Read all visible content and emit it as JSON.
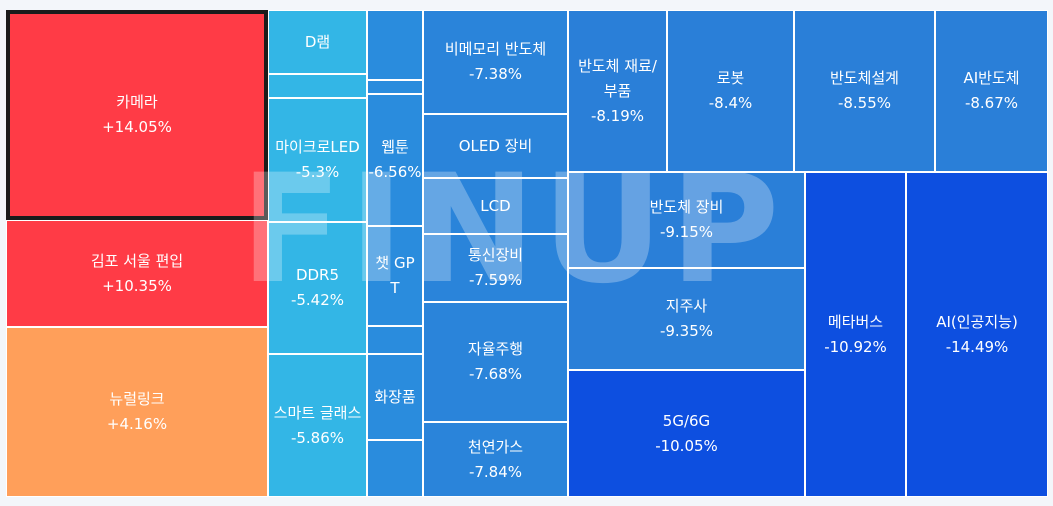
{
  "watermark": "FINUP",
  "tiles": [
    {
      "name": "카메라",
      "change": "+14.05%",
      "color": "#ff3b46"
    },
    {
      "name": "김포 서울 편입",
      "change": "+10.35%",
      "color": "#ff3b46"
    },
    {
      "name": "뉴럴링크",
      "change": "+4.16%",
      "color": "#ff9f5a"
    },
    {
      "name": "D램",
      "change": "",
      "color": "#33b6e6"
    },
    {
      "name": "",
      "change": "",
      "color": "#33b6e6"
    },
    {
      "name": "마이크로LED",
      "change": "-5.3%",
      "color": "#33b6e6"
    },
    {
      "name": "DDR5",
      "change": "-5.42%",
      "color": "#33b6e6"
    },
    {
      "name": "스마트 글래스",
      "change": "-5.86%",
      "color": "#33b6e6"
    },
    {
      "name": "",
      "change": "",
      "color": "#2a8cdd"
    },
    {
      "name": "",
      "change": "",
      "color": "#2a8cdd"
    },
    {
      "name": "",
      "change": "",
      "color": "#2a8cdd"
    },
    {
      "name": "웹툰",
      "change": "-6.56%",
      "color": "#2a8cdd"
    },
    {
      "name": "챗 GPT",
      "change": "",
      "color": "#2a8cdd"
    },
    {
      "name": "",
      "change": "",
      "color": "#2a8cdd"
    },
    {
      "name": "화장품",
      "change": "",
      "color": "#2a8cdd"
    },
    {
      "name": "",
      "change": "",
      "color": "#2a8cdd"
    },
    {
      "name": "비메모리 반도체",
      "change": "-7.38%",
      "color": "#2a84da"
    },
    {
      "name": "OLED 장비",
      "change": "",
      "color": "#2a84da"
    },
    {
      "name": "LCD",
      "change": "",
      "color": "#2a84da"
    },
    {
      "name": "통신장비",
      "change": "-7.59%",
      "color": "#2a84da"
    },
    {
      "name": "자율주행",
      "change": "-7.68%",
      "color": "#2a84da"
    },
    {
      "name": "천연가스",
      "change": "-7.84%",
      "color": "#2a84da"
    },
    {
      "name": "반도체 재료/부품",
      "change": "-8.19%",
      "color": "#2a7fd8"
    },
    {
      "name": "로봇",
      "change": "-8.4%",
      "color": "#2a7fd8"
    },
    {
      "name": "반도체설계",
      "change": "-8.55%",
      "color": "#2a7fd8"
    },
    {
      "name": "AI반도체",
      "change": "-8.67%",
      "color": "#2a7fd8"
    },
    {
      "name": "반도체 장비",
      "change": "-9.15%",
      "color": "#2a7fd8"
    },
    {
      "name": "지주사",
      "change": "-9.35%",
      "color": "#2a7fd8"
    },
    {
      "name": "5G/6G",
      "change": "-10.05%",
      "color": "#0d4fe0"
    },
    {
      "name": "메타버스",
      "change": "-10.92%",
      "color": "#0d4fe0"
    },
    {
      "name": "AI(인공지능)",
      "change": "-14.49%",
      "color": "#0d4fe0"
    }
  ]
}
